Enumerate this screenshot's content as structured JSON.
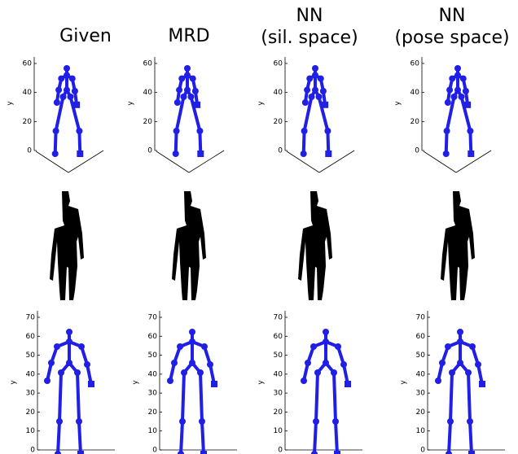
{
  "columns": [
    {
      "title": [
        "Given"
      ]
    },
    {
      "title": [
        "MRD"
      ]
    },
    {
      "title": [
        "NN",
        "(sil. space)"
      ]
    },
    {
      "title": [
        "NN",
        "(pose space)"
      ]
    }
  ],
  "axis_label": "y",
  "pose_3d": {
    "ylim": [
      0,
      60
    ],
    "yticks": [
      0,
      20,
      40,
      60
    ]
  },
  "pose_2d": {
    "ylim": [
      0,
      70
    ],
    "yticks": [
      0,
      10,
      20,
      30,
      40,
      50,
      60,
      70
    ]
  }
}
